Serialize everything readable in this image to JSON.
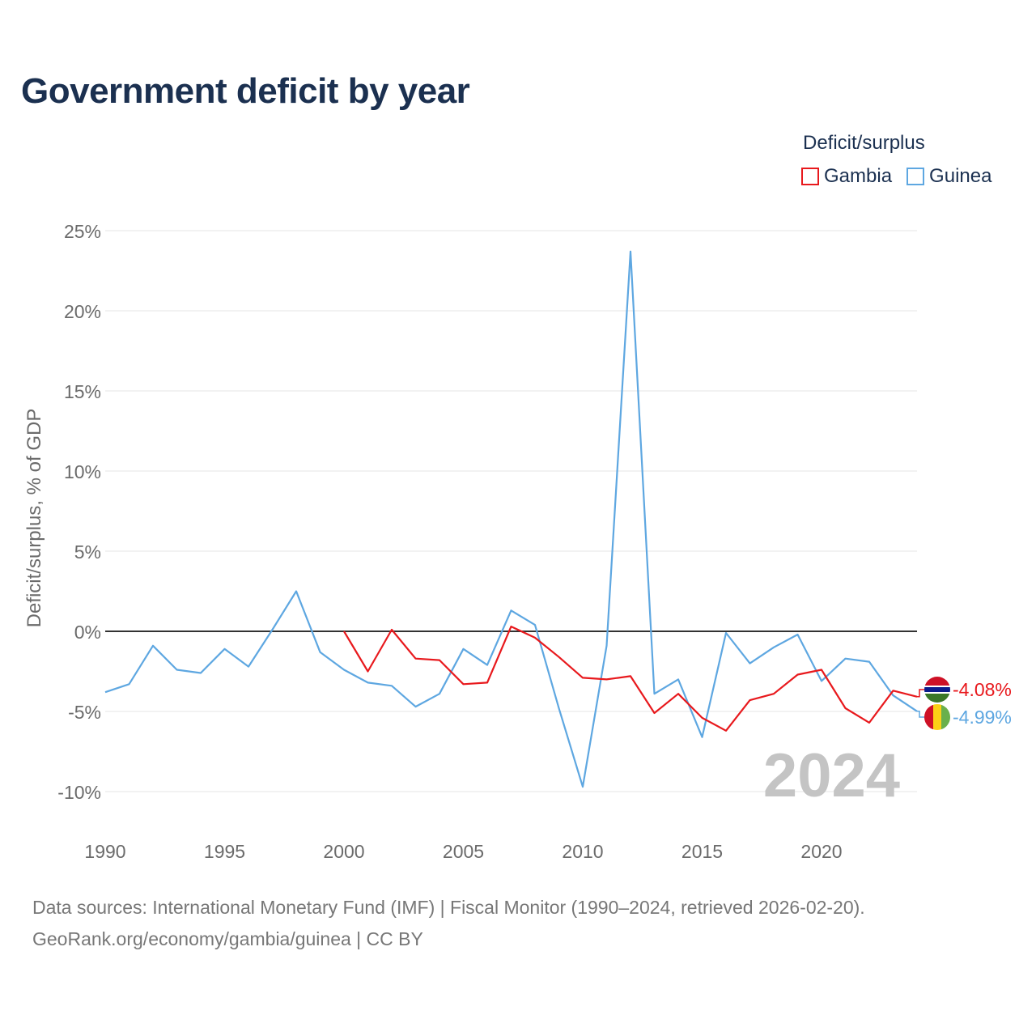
{
  "title": "Government deficit by year",
  "legend": {
    "title": "Deficit/surplus",
    "items": [
      {
        "label": "Gambia",
        "color": "#e8191d"
      },
      {
        "label": "Guinea",
        "color": "#5ea7e1"
      }
    ]
  },
  "year_watermark": "2024",
  "footer": {
    "line1": "Data sources: International Monetary Fund (IMF) | Fiscal Monitor (1990–2024, retrieved 2026-02-20).",
    "line2": "GeoRank.org/economy/gambia/guinea | CC BY"
  },
  "chart_data": {
    "type": "line",
    "title": "Government deficit by year",
    "xlabel": "",
    "ylabel": "Deficit/surplus, % of GDP",
    "xlim": [
      1990,
      2024
    ],
    "ylim": [
      -12,
      26
    ],
    "x_ticks": [
      1990,
      1995,
      2000,
      2005,
      2010,
      2015,
      2020
    ],
    "x_tick_labels": [
      "1990",
      "1995",
      "2000",
      "2005",
      "2010",
      "2015",
      "2020"
    ],
    "y_ticks": [
      25,
      20,
      15,
      10,
      5,
      0,
      -5,
      -10
    ],
    "y_tick_labels": [
      "25%",
      "20%",
      "15%",
      "10%",
      "5%",
      "0%",
      "-5%",
      "-10%"
    ],
    "grid": true,
    "legend_position": "top-right",
    "series": [
      {
        "name": "Gambia",
        "color": "#e8191d",
        "end_label": "-4.08%",
        "x": [
          2000,
          2001,
          2002,
          2003,
          2004,
          2005,
          2006,
          2007,
          2008,
          2009,
          2010,
          2011,
          2012,
          2013,
          2014,
          2015,
          2016,
          2017,
          2018,
          2019,
          2020,
          2021,
          2022,
          2023,
          2024
        ],
        "values": [
          0.0,
          -2.5,
          0.1,
          -1.7,
          -1.8,
          -3.3,
          -3.2,
          0.3,
          -0.4,
          -1.6,
          -2.9,
          -3.0,
          -2.8,
          -5.1,
          -3.9,
          -5.4,
          -6.2,
          -4.3,
          -3.9,
          -2.7,
          -2.4,
          -4.8,
          -5.7,
          -3.7,
          -4.08
        ]
      },
      {
        "name": "Guinea",
        "color": "#5ea7e1",
        "end_label": "-4.99%",
        "x": [
          1990,
          1991,
          1992,
          1993,
          1994,
          1995,
          1996,
          1997,
          1998,
          1999,
          2000,
          2001,
          2002,
          2003,
          2004,
          2005,
          2006,
          2007,
          2008,
          2009,
          2010,
          2011,
          2012,
          2013,
          2014,
          2015,
          2016,
          2017,
          2018,
          2019,
          2020,
          2021,
          2022,
          2023,
          2024
        ],
        "values": [
          -3.8,
          -3.3,
          -0.9,
          -2.4,
          -2.6,
          -1.1,
          -2.2,
          0.1,
          2.5,
          -1.3,
          -2.4,
          -3.2,
          -3.4,
          -4.7,
          -3.9,
          -1.1,
          -2.1,
          1.3,
          0.4,
          -4.8,
          -9.7,
          -0.9,
          23.7,
          -3.9,
          -3.0,
          -6.6,
          -0.1,
          -2.0,
          -1.0,
          -0.2,
          -3.1,
          -1.7,
          -1.9,
          -4.0,
          -4.99
        ]
      }
    ]
  }
}
